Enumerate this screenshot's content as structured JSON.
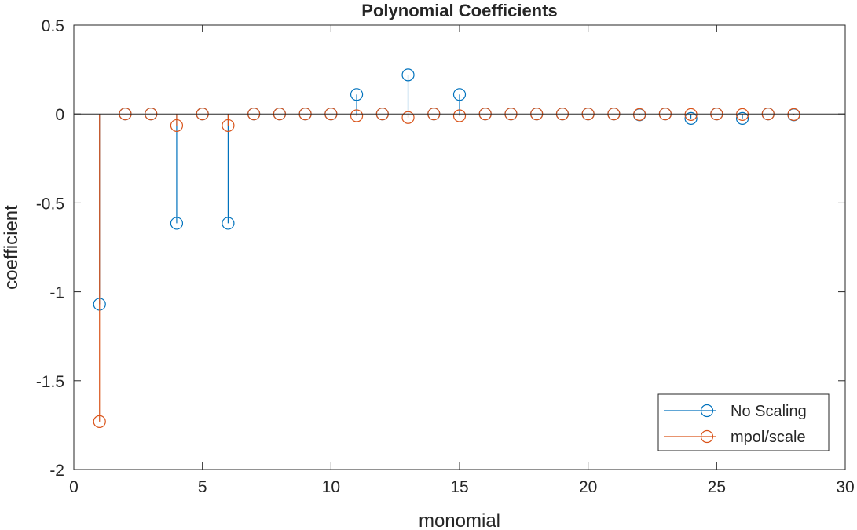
{
  "chart_data": {
    "type": "stem",
    "title": "Polynomial Coefficients",
    "xlabel": "monomial",
    "ylabel": "coefficient",
    "xlim": [
      0,
      30
    ],
    "ylim": [
      -2,
      0.5
    ],
    "xticks": [
      0,
      5,
      10,
      15,
      20,
      25,
      30
    ],
    "xtick_labels": [
      "0",
      "5",
      "10",
      "15",
      "20",
      "25",
      "30"
    ],
    "yticks": [
      0.5,
      0,
      -0.5,
      -1,
      -1.5,
      -2
    ],
    "ytick_labels": [
      "0.5",
      "0",
      "-0.5",
      "-1",
      "-1.5",
      "-2"
    ],
    "grid": false,
    "baseline": 0,
    "legend": {
      "position": "bottom-right"
    },
    "series": [
      {
        "name": "No Scaling",
        "color": "#0072BD",
        "marker": "circle-open",
        "x": [
          1,
          2,
          3,
          4,
          5,
          6,
          7,
          8,
          9,
          10,
          11,
          12,
          13,
          14,
          15,
          16,
          17,
          18,
          19,
          20,
          21,
          22,
          23,
          24,
          25,
          26,
          27,
          28
        ],
        "values": [
          -1.07,
          0,
          0,
          -0.615,
          0,
          -0.615,
          0,
          0,
          0,
          0,
          0.11,
          0,
          0.22,
          0,
          0.11,
          0,
          0,
          0,
          0,
          0,
          0,
          -0.005,
          0,
          -0.025,
          0,
          -0.025,
          0,
          -0.005
        ]
      },
      {
        "name": "mpol/scale",
        "color": "#D95319",
        "marker": "circle-open",
        "x": [
          1,
          2,
          3,
          4,
          5,
          6,
          7,
          8,
          9,
          10,
          11,
          12,
          13,
          14,
          15,
          16,
          17,
          18,
          19,
          20,
          21,
          22,
          23,
          24,
          25,
          26,
          27,
          28
        ],
        "values": [
          -1.73,
          0,
          0,
          -0.065,
          0,
          -0.065,
          0,
          0,
          0,
          0,
          -0.01,
          0,
          -0.02,
          0,
          -0.01,
          0,
          0,
          0,
          0,
          0,
          0,
          -0.003,
          0,
          -0.003,
          0,
          -0.003,
          0,
          -0.003
        ]
      }
    ]
  }
}
